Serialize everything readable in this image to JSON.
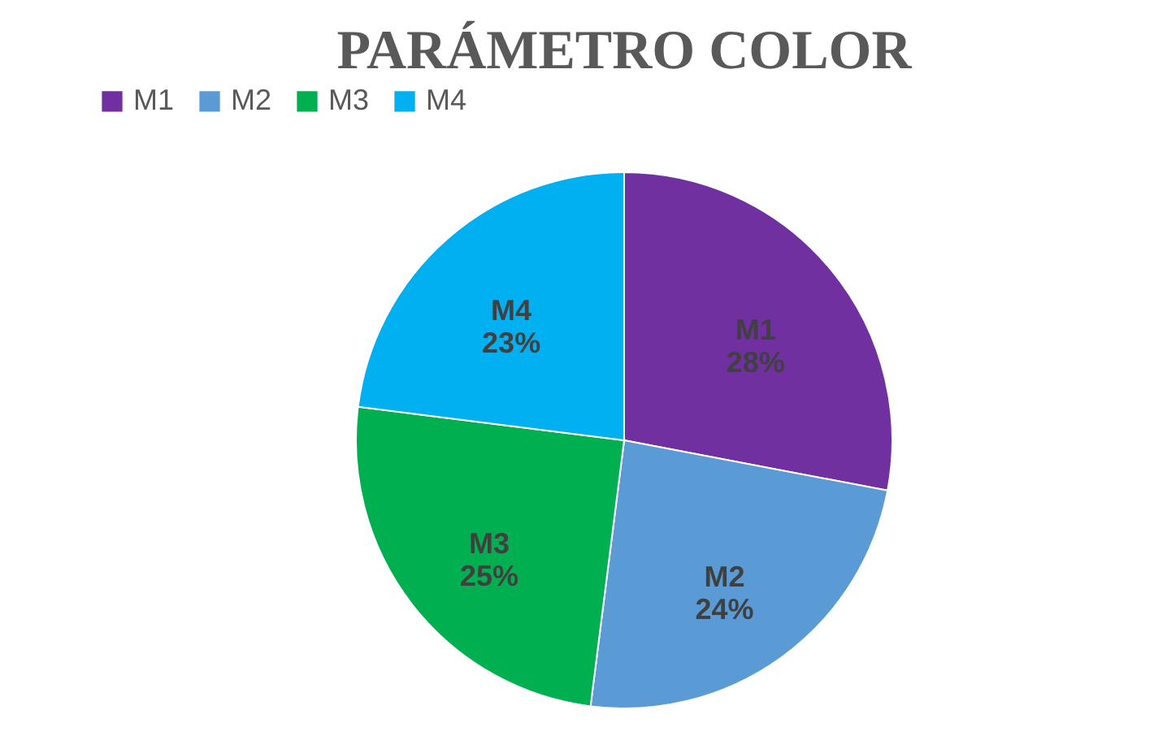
{
  "chart_data": {
    "type": "pie",
    "title": "PARÁMETRO COLOR",
    "categories": [
      "M1",
      "M2",
      "M3",
      "M4"
    ],
    "values": [
      28,
      24,
      25,
      23
    ],
    "colors": [
      "#7030a0",
      "#5b9bd5",
      "#00b050",
      "#00b0f0"
    ],
    "value_labels": [
      "28%",
      "24%",
      "25%",
      "23%"
    ],
    "legend": "top"
  }
}
